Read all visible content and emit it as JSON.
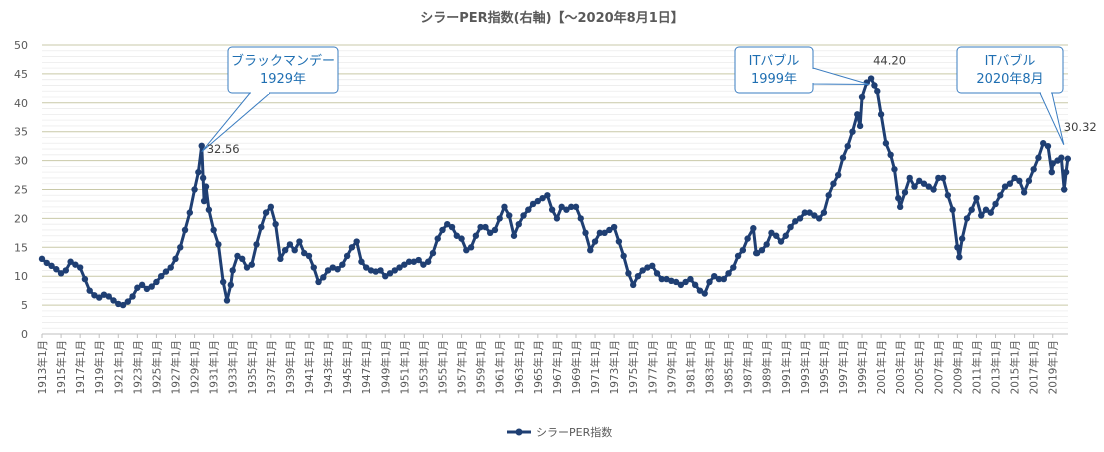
{
  "chart_data": {
    "type": "line",
    "title": "シラーPER指数(右軸)【～2020年8月1日】",
    "series": [
      {
        "name": "シラーPER指数",
        "color": "#1f3f73",
        "points": [
          [
            1913.0,
            13.0
          ],
          [
            1913.5,
            12.3
          ],
          [
            1914.0,
            11.8
          ],
          [
            1914.5,
            11.2
          ],
          [
            1915.0,
            10.5
          ],
          [
            1915.5,
            11.0
          ],
          [
            1916.0,
            12.5
          ],
          [
            1916.5,
            12.0
          ],
          [
            1917.0,
            11.5
          ],
          [
            1917.5,
            9.5
          ],
          [
            1918.0,
            7.5
          ],
          [
            1918.5,
            6.7
          ],
          [
            1919.0,
            6.3
          ],
          [
            1919.5,
            6.8
          ],
          [
            1920.0,
            6.5
          ],
          [
            1920.5,
            5.8
          ],
          [
            1921.0,
            5.2
          ],
          [
            1921.5,
            5.0
          ],
          [
            1922.0,
            5.6
          ],
          [
            1922.5,
            6.5
          ],
          [
            1923.0,
            8.0
          ],
          [
            1923.5,
            8.5
          ],
          [
            1924.0,
            7.8
          ],
          [
            1924.5,
            8.2
          ],
          [
            1925.0,
            9.0
          ],
          [
            1925.5,
            10.0
          ],
          [
            1926.0,
            10.8
          ],
          [
            1926.5,
            11.5
          ],
          [
            1927.0,
            13.0
          ],
          [
            1927.5,
            15.0
          ],
          [
            1928.0,
            18.0
          ],
          [
            1928.5,
            21.0
          ],
          [
            1929.0,
            25.0
          ],
          [
            1929.4,
            28.0
          ],
          [
            1929.75,
            32.56
          ],
          [
            1929.9,
            27.0
          ],
          [
            1930.0,
            23.0
          ],
          [
            1930.2,
            25.5
          ],
          [
            1930.5,
            21.5
          ],
          [
            1931.0,
            18.0
          ],
          [
            1931.5,
            15.5
          ],
          [
            1932.0,
            9.0
          ],
          [
            1932.4,
            5.8
          ],
          [
            1932.8,
            8.5
          ],
          [
            1933.0,
            11.0
          ],
          [
            1933.5,
            13.5
          ],
          [
            1934.0,
            13.0
          ],
          [
            1934.5,
            11.5
          ],
          [
            1935.0,
            12.0
          ],
          [
            1935.5,
            15.5
          ],
          [
            1936.0,
            18.5
          ],
          [
            1936.5,
            21.0
          ],
          [
            1937.0,
            22.0
          ],
          [
            1937.5,
            19.0
          ],
          [
            1938.0,
            13.0
          ],
          [
            1938.5,
            14.5
          ],
          [
            1939.0,
            15.5
          ],
          [
            1939.5,
            14.5
          ],
          [
            1940.0,
            16.0
          ],
          [
            1940.5,
            14.0
          ],
          [
            1941.0,
            13.5
          ],
          [
            1941.5,
            11.5
          ],
          [
            1942.0,
            9.0
          ],
          [
            1942.5,
            9.8
          ],
          [
            1943.0,
            11.0
          ],
          [
            1943.5,
            11.5
          ],
          [
            1944.0,
            11.2
          ],
          [
            1944.5,
            12.0
          ],
          [
            1945.0,
            13.5
          ],
          [
            1945.5,
            15.0
          ],
          [
            1946.0,
            16.0
          ],
          [
            1946.5,
            12.5
          ],
          [
            1947.0,
            11.5
          ],
          [
            1947.5,
            11.0
          ],
          [
            1948.0,
            10.8
          ],
          [
            1948.5,
            11.0
          ],
          [
            1949.0,
            10.0
          ],
          [
            1949.5,
            10.5
          ],
          [
            1950.0,
            11.0
          ],
          [
            1950.5,
            11.5
          ],
          [
            1951.0,
            12.0
          ],
          [
            1951.5,
            12.5
          ],
          [
            1952.0,
            12.5
          ],
          [
            1952.5,
            12.8
          ],
          [
            1953.0,
            12.0
          ],
          [
            1953.5,
            12.5
          ],
          [
            1954.0,
            14.0
          ],
          [
            1954.5,
            16.5
          ],
          [
            1955.0,
            18.0
          ],
          [
            1955.5,
            19.0
          ],
          [
            1956.0,
            18.5
          ],
          [
            1956.5,
            17.0
          ],
          [
            1957.0,
            16.5
          ],
          [
            1957.5,
            14.5
          ],
          [
            1958.0,
            15.0
          ],
          [
            1958.5,
            17.0
          ],
          [
            1959.0,
            18.5
          ],
          [
            1959.5,
            18.5
          ],
          [
            1960.0,
            17.5
          ],
          [
            1960.5,
            18.0
          ],
          [
            1961.0,
            20.0
          ],
          [
            1961.5,
            22.0
          ],
          [
            1962.0,
            20.5
          ],
          [
            1962.5,
            17.0
          ],
          [
            1963.0,
            19.0
          ],
          [
            1963.5,
            20.5
          ],
          [
            1964.0,
            21.5
          ],
          [
            1964.5,
            22.5
          ],
          [
            1965.0,
            23.0
          ],
          [
            1965.5,
            23.5
          ],
          [
            1966.0,
            24.0
          ],
          [
            1966.5,
            21.5
          ],
          [
            1967.0,
            20.0
          ],
          [
            1967.5,
            22.0
          ],
          [
            1968.0,
            21.5
          ],
          [
            1968.5,
            22.0
          ],
          [
            1969.0,
            22.0
          ],
          [
            1969.5,
            20.0
          ],
          [
            1970.0,
            17.5
          ],
          [
            1970.5,
            14.5
          ],
          [
            1971.0,
            16.0
          ],
          [
            1971.5,
            17.5
          ],
          [
            1972.0,
            17.5
          ],
          [
            1972.5,
            18.0
          ],
          [
            1973.0,
            18.5
          ],
          [
            1973.5,
            16.0
          ],
          [
            1974.0,
            13.5
          ],
          [
            1974.5,
            10.5
          ],
          [
            1975.0,
            8.5
          ],
          [
            1975.5,
            10.0
          ],
          [
            1976.0,
            11.0
          ],
          [
            1976.5,
            11.5
          ],
          [
            1977.0,
            11.8
          ],
          [
            1977.5,
            10.5
          ],
          [
            1978.0,
            9.5
          ],
          [
            1978.5,
            9.5
          ],
          [
            1979.0,
            9.2
          ],
          [
            1979.5,
            9.0
          ],
          [
            1980.0,
            8.5
          ],
          [
            1980.5,
            9.0
          ],
          [
            1981.0,
            9.5
          ],
          [
            1981.5,
            8.5
          ],
          [
            1982.0,
            7.5
          ],
          [
            1982.5,
            7.0
          ],
          [
            1983.0,
            9.0
          ],
          [
            1983.5,
            10.0
          ],
          [
            1984.0,
            9.5
          ],
          [
            1984.5,
            9.5
          ],
          [
            1985.0,
            10.5
          ],
          [
            1985.5,
            11.5
          ],
          [
            1986.0,
            13.5
          ],
          [
            1986.5,
            14.5
          ],
          [
            1987.0,
            16.5
          ],
          [
            1987.6,
            18.3
          ],
          [
            1987.9,
            14.0
          ],
          [
            1988.0,
            14.0
          ],
          [
            1988.5,
            14.5
          ],
          [
            1989.0,
            15.5
          ],
          [
            1989.5,
            17.5
          ],
          [
            1990.0,
            17.0
          ],
          [
            1990.5,
            16.0
          ],
          [
            1991.0,
            17.0
          ],
          [
            1991.5,
            18.5
          ],
          [
            1992.0,
            19.5
          ],
          [
            1992.5,
            20.0
          ],
          [
            1993.0,
            21.0
          ],
          [
            1993.5,
            21.0
          ],
          [
            1994.0,
            20.5
          ],
          [
            1994.5,
            20.0
          ],
          [
            1995.0,
            21.0
          ],
          [
            1995.5,
            24.0
          ],
          [
            1996.0,
            26.0
          ],
          [
            1996.5,
            27.5
          ],
          [
            1997.0,
            30.5
          ],
          [
            1997.5,
            32.5
          ],
          [
            1998.0,
            35.0
          ],
          [
            1998.5,
            38.0
          ],
          [
            1998.8,
            36.0
          ],
          [
            1999.0,
            41.0
          ],
          [
            1999.5,
            43.5
          ],
          [
            1999.95,
            44.2
          ],
          [
            2000.3,
            43.0
          ],
          [
            2000.6,
            42.0
          ],
          [
            2001.0,
            38.0
          ],
          [
            2001.5,
            33.0
          ],
          [
            2002.0,
            31.0
          ],
          [
            2002.4,
            28.5
          ],
          [
            2002.8,
            23.5
          ],
          [
            2003.0,
            22.0
          ],
          [
            2003.5,
            24.5
          ],
          [
            2004.0,
            27.0
          ],
          [
            2004.5,
            25.5
          ],
          [
            2005.0,
            26.5
          ],
          [
            2005.5,
            26.0
          ],
          [
            2006.0,
            25.5
          ],
          [
            2006.5,
            25.0
          ],
          [
            2007.0,
            27.0
          ],
          [
            2007.5,
            27.0
          ],
          [
            2008.0,
            24.0
          ],
          [
            2008.5,
            21.5
          ],
          [
            2009.0,
            15.0
          ],
          [
            2009.2,
            13.3
          ],
          [
            2009.5,
            16.5
          ],
          [
            2010.0,
            20.0
          ],
          [
            2010.5,
            21.5
          ],
          [
            2011.0,
            23.5
          ],
          [
            2011.5,
            20.5
          ],
          [
            2012.0,
            21.5
          ],
          [
            2012.5,
            21.0
          ],
          [
            2013.0,
            22.5
          ],
          [
            2013.5,
            24.0
          ],
          [
            2014.0,
            25.5
          ],
          [
            2014.5,
            26.0
          ],
          [
            2015.0,
            27.0
          ],
          [
            2015.5,
            26.5
          ],
          [
            2016.0,
            24.5
          ],
          [
            2016.5,
            26.5
          ],
          [
            2017.0,
            28.5
          ],
          [
            2017.5,
            30.5
          ],
          [
            2018.0,
            33.0
          ],
          [
            2018.5,
            32.5
          ],
          [
            2018.9,
            28.0
          ],
          [
            2019.0,
            29.5
          ],
          [
            2019.5,
            30.0
          ],
          [
            2019.9,
            30.5
          ],
          [
            2020.2,
            25.0
          ],
          [
            2020.4,
            28.0
          ],
          [
            2020.58,
            30.32
          ]
        ]
      }
    ],
    "ylim": [
      0,
      50
    ],
    "yticks": [
      0,
      5,
      10,
      15,
      20,
      25,
      30,
      35,
      40,
      45,
      50
    ],
    "xlim": [
      1913.0,
      2020.6
    ],
    "xticks": [
      "1913年1月",
      "1915年1月",
      "1917年1月",
      "1919年1月",
      "1921年1月",
      "1923年1月",
      "1925年1月",
      "1927年1月",
      "1929年1月",
      "1931年1月",
      "1933年1月",
      "1935年1月",
      "1937年1月",
      "1939年1月",
      "1941年1月",
      "1943年1月",
      "1945年1月",
      "1947年1月",
      "1949年1月",
      "1951年1月",
      "1953年1月",
      "1955年1月",
      "1957年1月",
      "1959年1月",
      "1961年1月",
      "1963年1月",
      "1965年1月",
      "1967年1月",
      "1969年1月",
      "1971年1月",
      "1973年1月",
      "1975年1月",
      "1977年1月",
      "1979年1月",
      "1981年1月",
      "1983年1月",
      "1985年1月",
      "1987年1月",
      "1989年1月",
      "1991年1月",
      "1993年1月",
      "1995年1月",
      "1997年1月",
      "1999年1月",
      "2001年1月",
      "2003年1月",
      "2005年1月",
      "2007年1月",
      "2009年1月",
      "2011年1月",
      "2013年1月",
      "2015年1月",
      "2017年1月",
      "2019年1月"
    ],
    "grid": true,
    "legend_position": "bottom",
    "annotations": [
      {
        "lines": [
          "ブラックマンデー",
          "1929年"
        ],
        "value_label": "32.56",
        "x": 1929.75,
        "y": 32.56
      },
      {
        "lines": [
          "ITバブル",
          "1999年"
        ],
        "value_label": "44.20",
        "x": 1999.95,
        "y": 44.2
      },
      {
        "lines": [
          "ITバブル",
          "2020年8月"
        ],
        "value_label": "30.32",
        "x": 2020.58,
        "y": 30.32
      }
    ]
  }
}
